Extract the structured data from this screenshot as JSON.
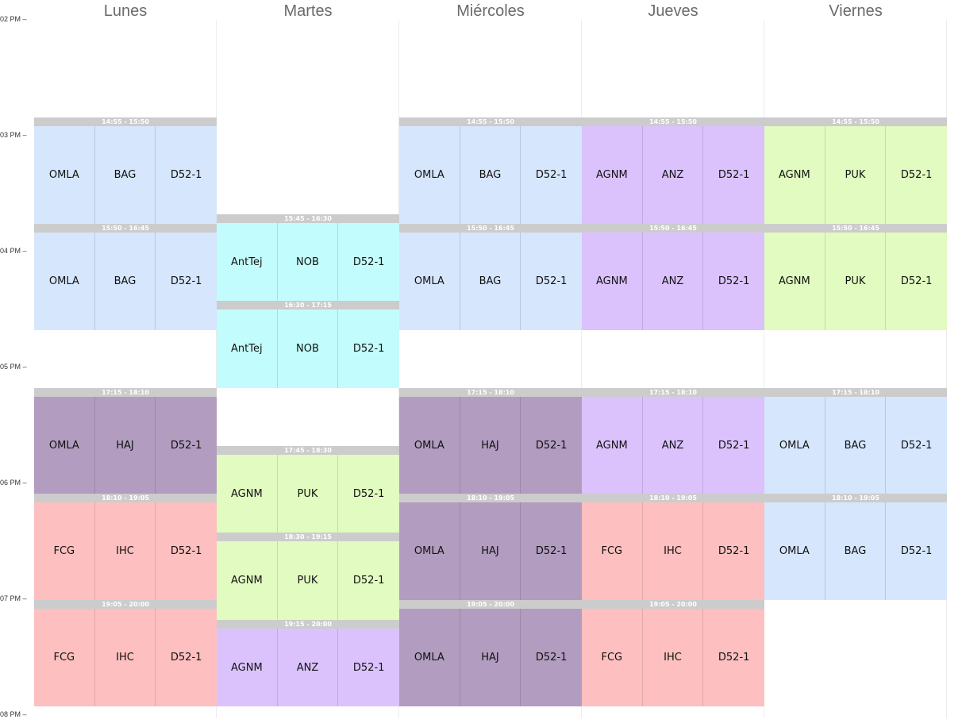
{
  "days": [
    "Lunes",
    "Martes",
    "Miércoles",
    "Jueves",
    "Viernes"
  ],
  "time_labels": [
    "02 PM",
    "03 PM",
    "04 PM",
    "05 PM",
    "06 PM",
    "07 PM",
    "08 PM"
  ],
  "colors": {
    "blue": "#d6e6fc",
    "purple": "#dbc2fc",
    "green": "#e1fbc0",
    "cyan": "#c3fcfc",
    "mauve": "#b29cbf",
    "pink": "#fdbfbf",
    "header_gray": "#cccccc"
  },
  "blocks": [
    {
      "day": 0,
      "time": "14:55 - 15:50",
      "start": "14:55",
      "end": "15:50",
      "color": "blue",
      "cells": [
        "OMLA",
        "BAG",
        "D52-1"
      ]
    },
    {
      "day": 0,
      "time": "15:50 - 16:45",
      "start": "15:50",
      "end": "16:45",
      "color": "blue",
      "cells": [
        "OMLA",
        "BAG",
        "D52-1"
      ]
    },
    {
      "day": 0,
      "time": "17:15 - 18:10",
      "start": "17:15",
      "end": "18:10",
      "color": "mauve",
      "cells": [
        "OMLA",
        "HAJ",
        "D52-1"
      ]
    },
    {
      "day": 0,
      "time": "18:10 - 19:05",
      "start": "18:10",
      "end": "19:05",
      "color": "pink",
      "cells": [
        "FCG",
        "IHC",
        "D52-1"
      ]
    },
    {
      "day": 0,
      "time": "19:05 - 20:00",
      "start": "19:05",
      "end": "20:00",
      "color": "pink",
      "cells": [
        "FCG",
        "IHC",
        "D52-1"
      ]
    },
    {
      "day": 1,
      "time": "15:45 - 16:30",
      "start": "15:45",
      "end": "16:30",
      "color": "cyan",
      "cells": [
        "AntTej",
        "NOB",
        "D52-1"
      ]
    },
    {
      "day": 1,
      "time": "16:30 - 17:15",
      "start": "16:30",
      "end": "17:15",
      "color": "cyan",
      "cells": [
        "AntTej",
        "NOB",
        "D52-1"
      ]
    },
    {
      "day": 1,
      "time": "17:45 - 18:30",
      "start": "17:45",
      "end": "18:30",
      "color": "green",
      "cells": [
        "AGNM",
        "PUK",
        "D52-1"
      ]
    },
    {
      "day": 1,
      "time": "18:30 - 19:15",
      "start": "18:30",
      "end": "19:15",
      "color": "green",
      "cells": [
        "AGNM",
        "PUK",
        "D52-1"
      ]
    },
    {
      "day": 1,
      "time": "19:15 - 20:00",
      "start": "19:15",
      "end": "20:00",
      "color": "purple",
      "cells": [
        "AGNM",
        "ANZ",
        "D52-1"
      ]
    },
    {
      "day": 2,
      "time": "14:55 - 15:50",
      "start": "14:55",
      "end": "15:50",
      "color": "blue",
      "cells": [
        "OMLA",
        "BAG",
        "D52-1"
      ]
    },
    {
      "day": 2,
      "time": "15:50 - 16:45",
      "start": "15:50",
      "end": "16:45",
      "color": "blue",
      "cells": [
        "OMLA",
        "BAG",
        "D52-1"
      ]
    },
    {
      "day": 2,
      "time": "17:15 - 18:10",
      "start": "17:15",
      "end": "18:10",
      "color": "mauve",
      "cells": [
        "OMLA",
        "HAJ",
        "D52-1"
      ]
    },
    {
      "day": 2,
      "time": "18:10 - 19:05",
      "start": "18:10",
      "end": "19:05",
      "color": "mauve",
      "cells": [
        "OMLA",
        "HAJ",
        "D52-1"
      ]
    },
    {
      "day": 2,
      "time": "19:05 - 20:00",
      "start": "19:05",
      "end": "20:00",
      "color": "mauve",
      "cells": [
        "OMLA",
        "HAJ",
        "D52-1"
      ]
    },
    {
      "day": 3,
      "time": "14:55 - 15:50",
      "start": "14:55",
      "end": "15:50",
      "color": "purple",
      "cells": [
        "AGNM",
        "ANZ",
        "D52-1"
      ]
    },
    {
      "day": 3,
      "time": "15:50 - 16:45",
      "start": "15:50",
      "end": "16:45",
      "color": "purple",
      "cells": [
        "AGNM",
        "ANZ",
        "D52-1"
      ]
    },
    {
      "day": 3,
      "time": "17:15 - 18:10",
      "start": "17:15",
      "end": "18:10",
      "color": "purple",
      "cells": [
        "AGNM",
        "ANZ",
        "D52-1"
      ]
    },
    {
      "day": 3,
      "time": "18:10 - 19:05",
      "start": "18:10",
      "end": "19:05",
      "color": "pink",
      "cells": [
        "FCG",
        "IHC",
        "D52-1"
      ]
    },
    {
      "day": 3,
      "time": "19:05 - 20:00",
      "start": "19:05",
      "end": "20:00",
      "color": "pink",
      "cells": [
        "FCG",
        "IHC",
        "D52-1"
      ]
    },
    {
      "day": 4,
      "time": "14:55 - 15:50",
      "start": "14:55",
      "end": "15:50",
      "color": "green",
      "cells": [
        "AGNM",
        "PUK",
        "D52-1"
      ]
    },
    {
      "day": 4,
      "time": "15:50 - 16:45",
      "start": "15:50",
      "end": "16:45",
      "color": "green",
      "cells": [
        "AGNM",
        "PUK",
        "D52-1"
      ]
    },
    {
      "day": 4,
      "time": "17:15 - 18:10",
      "start": "17:15",
      "end": "18:10",
      "color": "blue",
      "cells": [
        "OMLA",
        "BAG",
        "D52-1"
      ]
    },
    {
      "day": 4,
      "time": "18:10 - 19:05",
      "start": "18:10",
      "end": "19:05",
      "color": "blue",
      "cells": [
        "OMLA",
        "BAG",
        "D52-1"
      ]
    }
  ]
}
